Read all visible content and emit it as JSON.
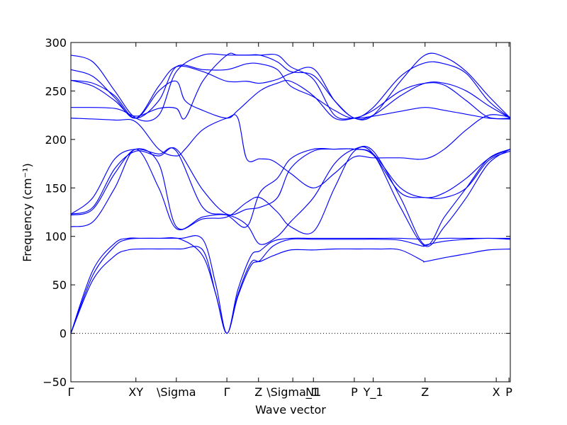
{
  "chart_data": {
    "type": "line",
    "xlabel": "Wave vector",
    "ylabel": "Frequency (cm⁻¹)",
    "ylim": [
      -50,
      300
    ],
    "y_ticks": [
      -50,
      0,
      50,
      100,
      150,
      200,
      250,
      300
    ],
    "x_range": [
      0,
      1
    ],
    "x_ticks": [
      {
        "label": "Γ",
        "x": 0.0
      },
      {
        "label": "XY",
        "x": 0.148
      },
      {
        "label": "\\Sigma",
        "x": 0.24
      },
      {
        "label": "Γ",
        "x": 0.355
      },
      {
        "label": "Z",
        "x": 0.427
      },
      {
        "label": "\\Sigma_1",
        "x": 0.505
      },
      {
        "label": "N1",
        "x": 0.552
      },
      {
        "label": "P",
        "x": 0.645
      },
      {
        "label": "Y_1",
        "x": 0.688
      },
      {
        "label": "Z",
        "x": 0.806
      },
      {
        "label": "X",
        "x": 0.968
      },
      {
        "label": "P",
        "x": 0.997
      }
    ],
    "zero_line": true,
    "line_color": "#0000ff",
    "series": [
      {
        "x": [
          0,
          0.05,
          0.1,
          0.13,
          0.16,
          0.2,
          0.25,
          0.3,
          0.33,
          0.355,
          0.38,
          0.41,
          0.43,
          0.46,
          0.5,
          0.55,
          0.6,
          0.65,
          0.7,
          0.75,
          0.8,
          0.806,
          0.85,
          0.9,
          0.95,
          1
        ],
        "values": [
          0,
          55,
          80,
          86,
          87,
          87,
          87,
          86,
          40,
          0,
          40,
          73,
          74,
          80,
          86,
          86,
          87,
          87,
          87,
          86,
          75,
          74,
          78,
          82,
          86,
          87
        ]
      },
      {
        "x": [
          0,
          0.05,
          0.1,
          0.13,
          0.16,
          0.2,
          0.25,
          0.3,
          0.33,
          0.355,
          0.38,
          0.41,
          0.43,
          0.46,
          0.5,
          0.55,
          0.6,
          0.65,
          0.7,
          0.75,
          0.8,
          0.806,
          0.85,
          0.9,
          0.95,
          1
        ],
        "values": [
          0,
          60,
          90,
          97,
          98,
          98,
          97,
          80,
          40,
          0,
          38,
          70,
          75,
          90,
          97,
          97,
          97,
          97,
          97,
          96,
          90,
          91,
          95,
          97,
          98,
          97
        ]
      },
      {
        "x": [
          0,
          0.05,
          0.1,
          0.13,
          0.16,
          0.2,
          0.25,
          0.3,
          0.33,
          0.355,
          0.38,
          0.41,
          0.43,
          0.46,
          0.5,
          0.55,
          0.6,
          0.65,
          0.7,
          0.75,
          0.8,
          0.806,
          0.85,
          0.9,
          0.95,
          1
        ],
        "values": [
          0,
          65,
          93,
          98,
          98,
          98,
          98,
          97,
          50,
          0,
          45,
          80,
          85,
          95,
          98,
          98,
          98,
          98,
          98,
          98,
          97,
          97,
          98,
          98,
          98,
          98
        ]
      },
      {
        "x": [
          0,
          0.05,
          0.1,
          0.148,
          0.2,
          0.24,
          0.3,
          0.355,
          0.4,
          0.43,
          0.47,
          0.5,
          0.552,
          0.6,
          0.645,
          0.688,
          0.75,
          0.806,
          0.85,
          0.9,
          0.95,
          1
        ],
        "values": [
          110,
          115,
          150,
          190,
          150,
          108,
          118,
          120,
          135,
          140,
          125,
          110,
          105,
          150,
          188,
          185,
          130,
          90,
          110,
          140,
          175,
          190
        ]
      },
      {
        "x": [
          0,
          0.05,
          0.1,
          0.148,
          0.2,
          0.24,
          0.3,
          0.355,
          0.4,
          0.43,
          0.47,
          0.5,
          0.552,
          0.6,
          0.645,
          0.688,
          0.75,
          0.806,
          0.85,
          0.9,
          0.95,
          1
        ],
        "values": [
          122,
          128,
          165,
          190,
          175,
          110,
          120,
          122,
          112,
          92,
          100,
          115,
          140,
          175,
          190,
          188,
          140,
          91,
          120,
          150,
          180,
          190
        ]
      },
      {
        "x": [
          0,
          0.05,
          0.1,
          0.148,
          0.2,
          0.24,
          0.3,
          0.355,
          0.4,
          0.43,
          0.47,
          0.5,
          0.552,
          0.6,
          0.645,
          0.688,
          0.75,
          0.806,
          0.85,
          0.9,
          0.95,
          1
        ],
        "values": [
          123,
          140,
          180,
          190,
          185,
          188,
          130,
          122,
          110,
          145,
          160,
          180,
          190,
          190,
          190,
          185,
          150,
          140,
          145,
          160,
          180,
          190
        ]
      },
      {
        "x": [
          0,
          0.05,
          0.1,
          0.148,
          0.2,
          0.24,
          0.3,
          0.355,
          0.4,
          0.43,
          0.47,
          0.5,
          0.552,
          0.6,
          0.645,
          0.688,
          0.75,
          0.806,
          0.85,
          0.9,
          0.95,
          1
        ],
        "values": [
          123,
          130,
          170,
          188,
          183,
          190,
          148,
          123,
          128,
          130,
          140,
          170,
          188,
          190,
          190,
          184,
          145,
          140,
          140,
          150,
          178,
          188
        ]
      },
      {
        "x": [
          0,
          0.1,
          0.148,
          0.2,
          0.24,
          0.26,
          0.3,
          0.355,
          0.38,
          0.4,
          0.43,
          0.46,
          0.5,
          0.552,
          0.6,
          0.645,
          0.688,
          0.75,
          0.806,
          0.85,
          0.9,
          0.95,
          1
        ],
        "values": [
          222,
          220,
          218,
          190,
          183,
          190,
          210,
          222,
          222,
          180,
          180,
          178,
          165,
          150,
          165,
          182,
          181,
          181,
          180,
          190,
          210,
          225,
          223
        ]
      },
      {
        "x": [
          0,
          0.1,
          0.148,
          0.2,
          0.24,
          0.26,
          0.3,
          0.355,
          0.38,
          0.43,
          0.47,
          0.5,
          0.552,
          0.6,
          0.645,
          0.688,
          0.75,
          0.806,
          0.85,
          0.9,
          0.95,
          1
        ],
        "values": [
          233,
          232,
          224,
          232,
          232,
          222,
          260,
          287,
          287,
          287,
          287,
          275,
          262,
          225,
          222,
          224,
          229,
          233,
          230,
          226,
          222,
          221
        ]
      },
      {
        "x": [
          0,
          0.05,
          0.1,
          0.148,
          0.2,
          0.24,
          0.26,
          0.3,
          0.355,
          0.38,
          0.43,
          0.47,
          0.5,
          0.552,
          0.6,
          0.645,
          0.688,
          0.75,
          0.806,
          0.85,
          0.9,
          0.95,
          1
        ],
        "values": [
          261,
          258,
          245,
          222,
          250,
          260,
          240,
          230,
          222,
          230,
          250,
          258,
          260,
          245,
          222,
          222,
          230,
          250,
          258,
          256,
          240,
          223,
          222
        ]
      },
      {
        "x": [
          0,
          0.05,
          0.1,
          0.148,
          0.2,
          0.24,
          0.3,
          0.355,
          0.4,
          0.43,
          0.47,
          0.5,
          0.552,
          0.6,
          0.645,
          0.688,
          0.75,
          0.806,
          0.85,
          0.9,
          0.95,
          1
        ],
        "values": [
          272,
          265,
          243,
          222,
          255,
          275,
          270,
          260,
          260,
          258,
          262,
          268,
          273,
          240,
          222,
          225,
          245,
          258,
          258,
          250,
          235,
          222
        ]
      },
      {
        "x": [
          0,
          0.05,
          0.1,
          0.148,
          0.2,
          0.24,
          0.3,
          0.355,
          0.4,
          0.43,
          0.47,
          0.5,
          0.552,
          0.6,
          0.645,
          0.688,
          0.75,
          0.806,
          0.85,
          0.9,
          0.95,
          1
        ],
        "values": [
          287,
          280,
          250,
          222,
          225,
          270,
          287,
          287,
          287,
          287,
          280,
          270,
          266,
          240,
          222,
          225,
          260,
          287,
          285,
          270,
          245,
          222
        ]
      },
      {
        "x": [
          0,
          0.05,
          0.1,
          0.148,
          0.2,
          0.24,
          0.3,
          0.355,
          0.4,
          0.43,
          0.47,
          0.5,
          0.552,
          0.6,
          0.645,
          0.688,
          0.75,
          0.806,
          0.85,
          0.9,
          0.95,
          1
        ],
        "values": [
          261,
          255,
          240,
          222,
          240,
          275,
          272,
          272,
          278,
          278,
          272,
          255,
          244,
          230,
          222,
          233,
          265,
          279,
          278,
          268,
          240,
          222
        ]
      }
    ]
  }
}
